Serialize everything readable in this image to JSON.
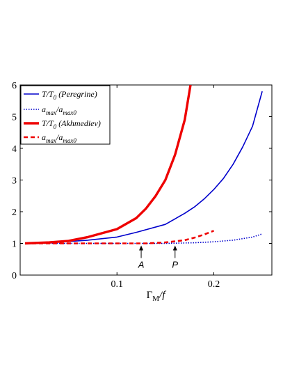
{
  "chart_data": {
    "type": "line",
    "xlim": [
      0,
      0.26
    ],
    "ylim": [
      0,
      6
    ],
    "xticks": [
      0.1,
      0.2
    ],
    "yticks": [
      0,
      1,
      2,
      3,
      4,
      5,
      6
    ],
    "xlabel": "Γ_M/f",
    "ylabel": "",
    "grid": false,
    "legend_position": "top-left",
    "series": [
      {
        "name": "T/T_0 (Peregrine)",
        "color": "#0000cc",
        "style": "solid-thin",
        "x": [
          0.005,
          0.03,
          0.05,
          0.07,
          0.1,
          0.12,
          0.15,
          0.17,
          0.18,
          0.19,
          0.2,
          0.21,
          0.22,
          0.23,
          0.24,
          0.25
        ],
        "y": [
          1.0,
          1.03,
          1.06,
          1.1,
          1.2,
          1.35,
          1.6,
          1.95,
          2.15,
          2.4,
          2.7,
          3.05,
          3.5,
          4.05,
          4.7,
          5.8
        ]
      },
      {
        "name": "a_max/a_max0 (Peregrine)",
        "color": "#0000cc",
        "style": "dotted",
        "x": [
          0.005,
          0.05,
          0.1,
          0.15,
          0.18,
          0.2,
          0.22,
          0.24,
          0.25
        ],
        "y": [
          1.0,
          1.0,
          1.0,
          1.0,
          1.02,
          1.05,
          1.1,
          1.2,
          1.3
        ]
      },
      {
        "name": "T/T_0 (Akhmediev)",
        "color": "#ee0000",
        "style": "solid-thick",
        "x": [
          0.005,
          0.03,
          0.05,
          0.07,
          0.1,
          0.12,
          0.13,
          0.14,
          0.15,
          0.16,
          0.17,
          0.176
        ],
        "y": [
          1.0,
          1.03,
          1.08,
          1.2,
          1.45,
          1.8,
          2.1,
          2.5,
          3.0,
          3.8,
          4.9,
          6.0
        ]
      },
      {
        "name": "a_max/a_max0 (Akhmediev)",
        "color": "#ee0000",
        "style": "dashed",
        "x": [
          0.005,
          0.05,
          0.1,
          0.13,
          0.15,
          0.17,
          0.18,
          0.19,
          0.2
        ],
        "y": [
          1.0,
          1.0,
          1.0,
          1.0,
          1.03,
          1.1,
          1.18,
          1.28,
          1.4
        ]
      }
    ],
    "legend": [
      {
        "main": "T/T",
        "sub": "0",
        "tail": " (Peregrine)"
      },
      {
        "main": "a",
        "sub": "max",
        "mid": "/a",
        "sub2": "max0",
        "tail": ""
      },
      {
        "main": "T/T",
        "sub": "0",
        "tail": " (Akhmediev)"
      },
      {
        "main": "a",
        "sub": "max",
        "mid": "/a",
        "sub2": "max0",
        "tail": ""
      }
    ],
    "annotations": [
      {
        "text": "A",
        "x": 0.125,
        "y_tip": 1.0
      },
      {
        "text": "P",
        "x": 0.16,
        "y_tip": 1.0
      }
    ]
  }
}
